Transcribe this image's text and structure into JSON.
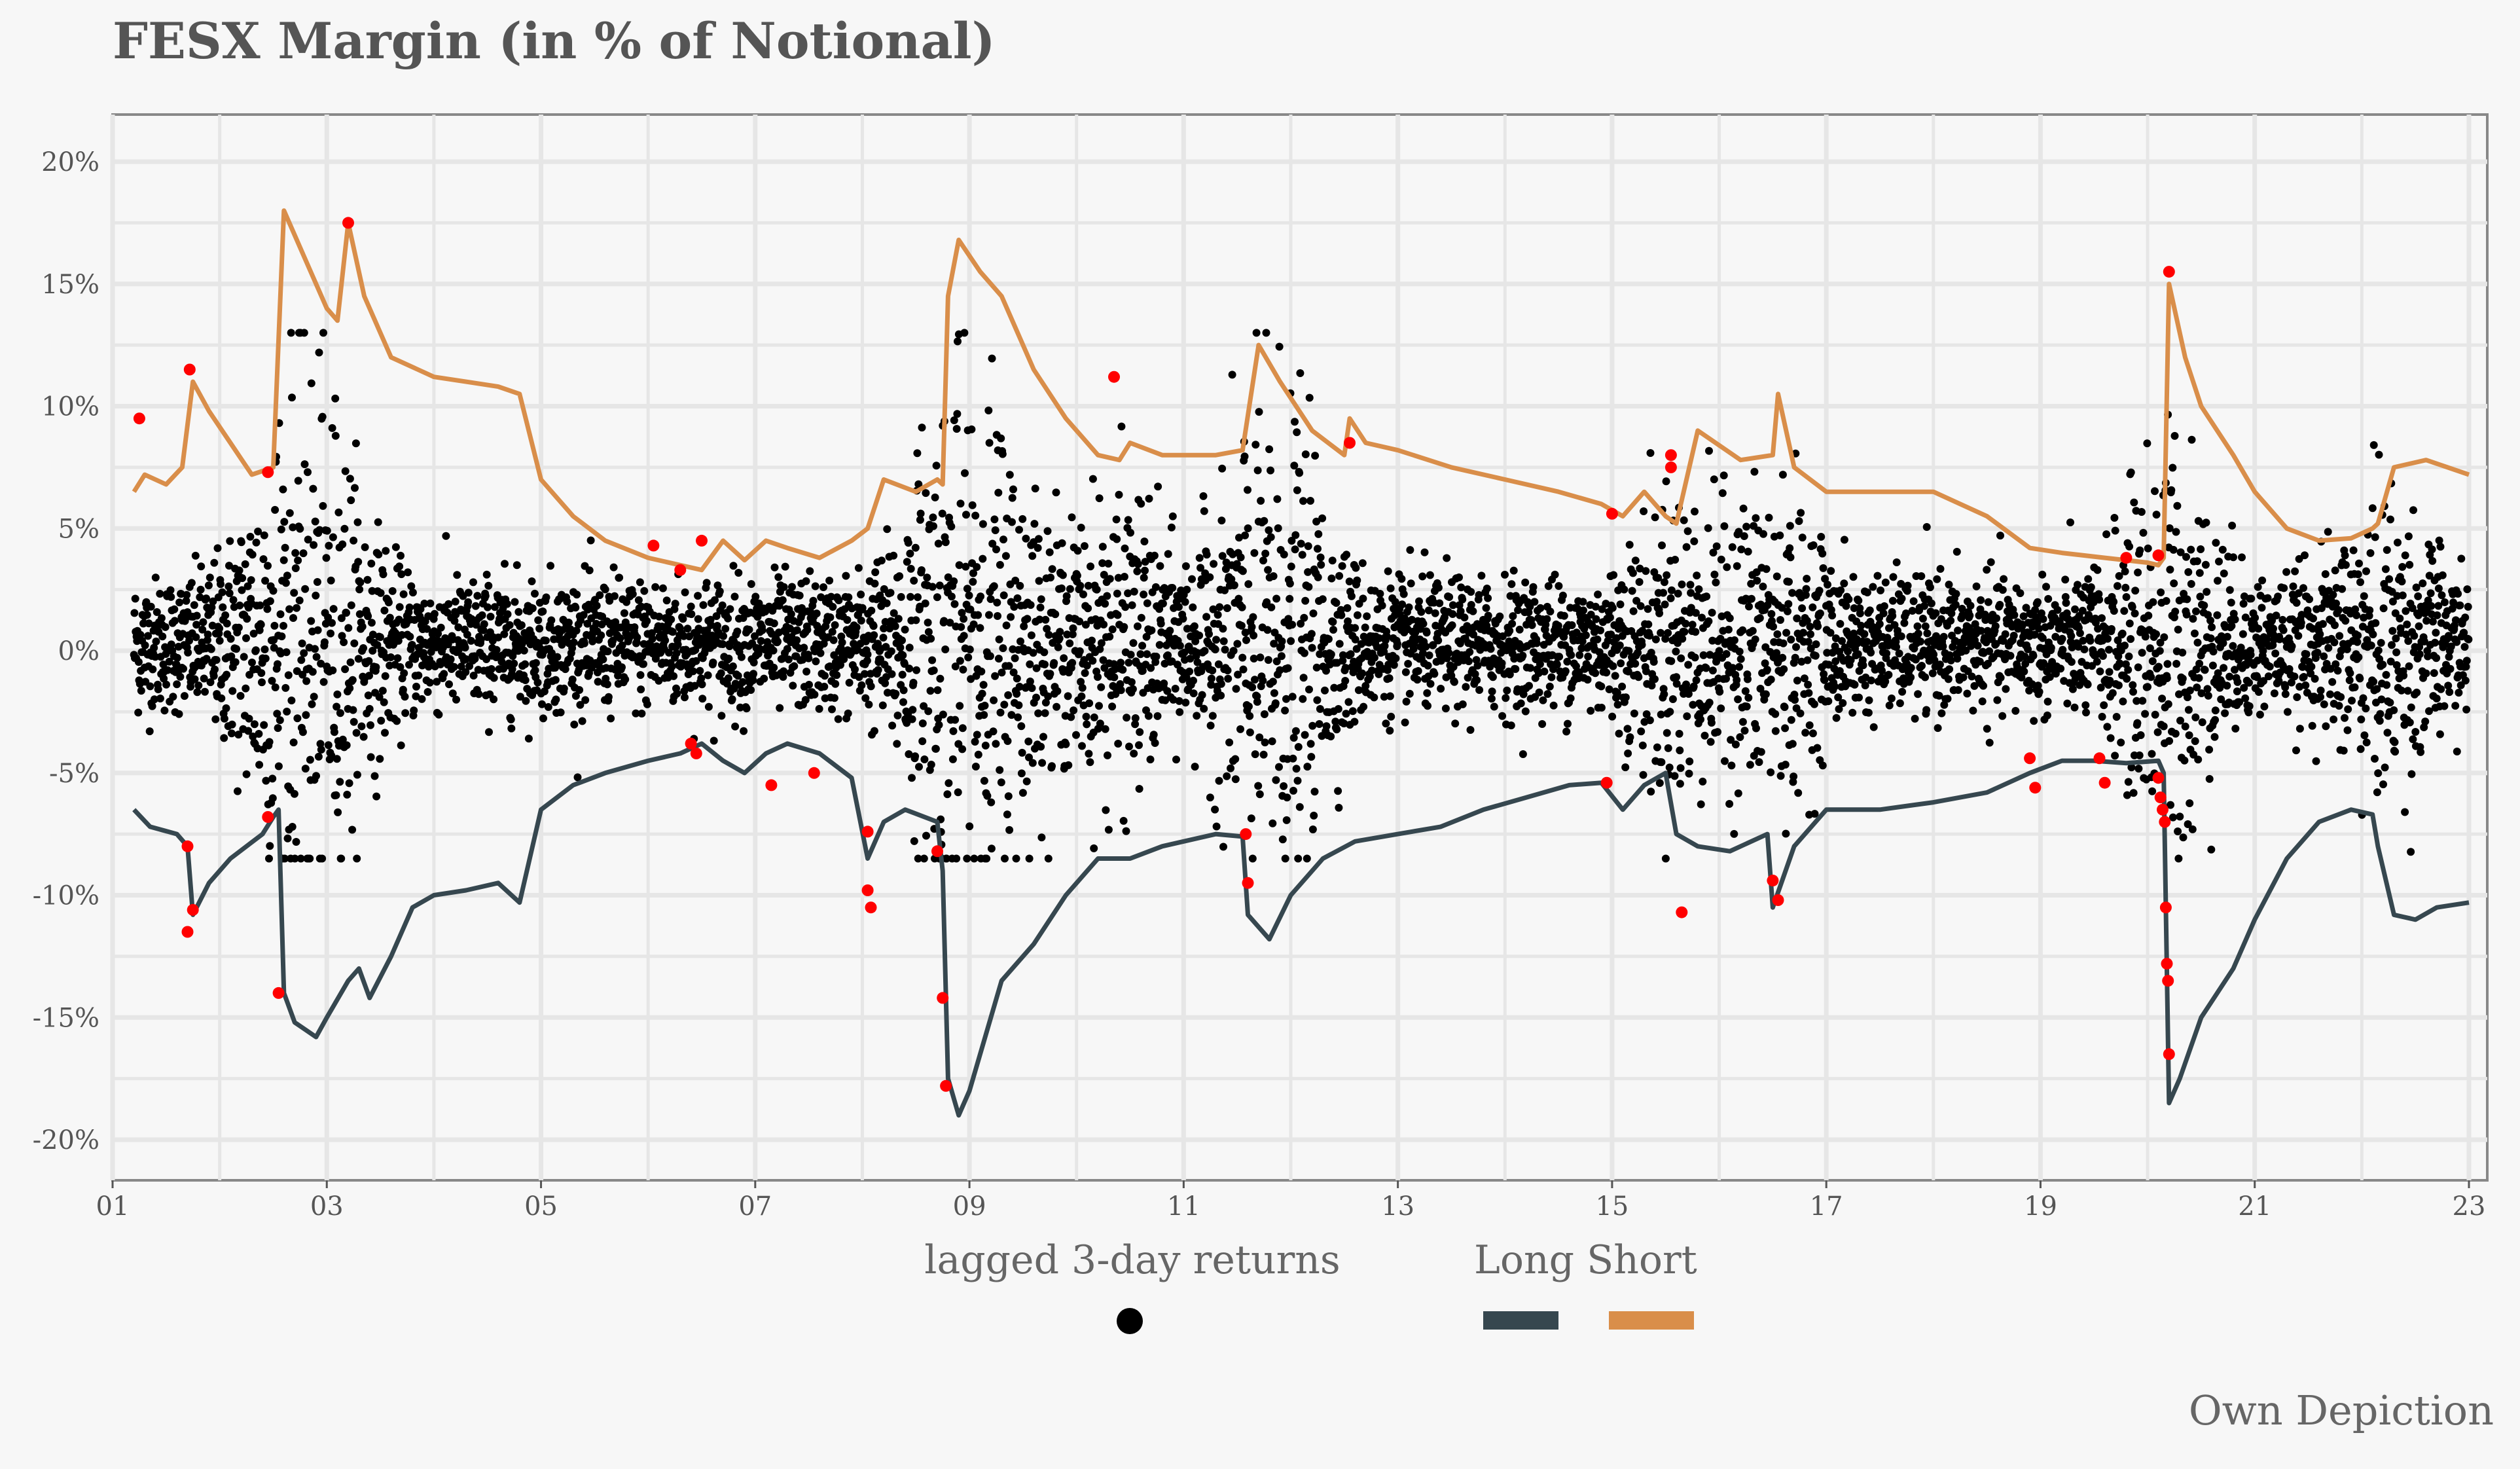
{
  "chart_data": {
    "type": "line",
    "title": "FESX Margin (in % of Notional)",
    "xlabel": "",
    "ylabel": "",
    "caption": "Own Depiction",
    "x_ticks": [
      "01",
      "03",
      "05",
      "07",
      "09",
      "11",
      "13",
      "15",
      "17",
      "19",
      "21",
      "23"
    ],
    "y_ticks": [
      "20%",
      "15%",
      "10%",
      "5%",
      "0%",
      "-5%",
      "-10%",
      "-15%",
      "-20%"
    ],
    "xlim": [
      2001,
      2023.2
    ],
    "ylim": [
      -22,
      22
    ],
    "grid": true,
    "legend_position": "bottom",
    "legend": {
      "points_title": "lagged 3-day returns",
      "lines_title": "Long  Short"
    },
    "colors": {
      "Long": "#36474f",
      "Short": "#d98e4a",
      "returns": "#000000",
      "breaches": "#ff0000"
    },
    "series": [
      {
        "name": "Long",
        "x": [
          2001.2,
          2001.35,
          2001.6,
          2001.7,
          2001.75,
          2001.9,
          2002.1,
          2002.4,
          2002.5,
          2002.55,
          2002.6,
          2002.7,
          2002.8,
          2002.9,
          2003.0,
          2003.2,
          2003.3,
          2003.4,
          2003.6,
          2003.8,
          2004.0,
          2004.3,
          2004.6,
          2004.8,
          2005.0,
          2005.3,
          2005.6,
          2006.0,
          2006.3,
          2006.5,
          2006.7,
          2006.9,
          2007.1,
          2007.3,
          2007.6,
          2007.9,
          2008.05,
          2008.2,
          2008.4,
          2008.7,
          2008.75,
          2008.8,
          2008.9,
          2009.0,
          2009.3,
          2009.6,
          2009.9,
          2010.2,
          2010.5,
          2010.8,
          2011.0,
          2011.3,
          2011.55,
          2011.6,
          2011.8,
          2012.0,
          2012.3,
          2012.6,
          2013.0,
          2013.4,
          2013.8,
          2014.2,
          2014.6,
          2014.9,
          2015.1,
          2015.3,
          2015.5,
          2015.6,
          2015.8,
          2016.1,
          2016.45,
          2016.5,
          2016.7,
          2017.0,
          2017.5,
          2018.0,
          2018.5,
          2018.9,
          2019.2,
          2019.5,
          2019.8,
          2020.1,
          2020.15,
          2020.2,
          2020.3,
          2020.5,
          2020.8,
          2021.0,
          2021.3,
          2021.6,
          2021.9,
          2022.1,
          2022.15,
          2022.3,
          2022.5,
          2022.7,
          2023.0
        ],
        "values": [
          -6.5,
          -7.2,
          -7.5,
          -8.0,
          -10.8,
          -9.5,
          -8.5,
          -7.5,
          -6.8,
          -6.5,
          -14.0,
          -15.2,
          -15.5,
          -15.8,
          -15.0,
          -13.5,
          -13.0,
          -14.2,
          -12.5,
          -10.5,
          -10.0,
          -9.8,
          -9.5,
          -10.3,
          -6.5,
          -5.5,
          -5.0,
          -4.5,
          -4.2,
          -3.8,
          -4.5,
          -5.0,
          -4.2,
          -3.8,
          -4.2,
          -5.2,
          -8.5,
          -7.0,
          -6.5,
          -7.0,
          -9.0,
          -17.5,
          -19.0,
          -18.0,
          -13.5,
          -12.0,
          -10.0,
          -8.5,
          -8.5,
          -8.0,
          -7.8,
          -7.5,
          -7.6,
          -10.8,
          -11.8,
          -10.0,
          -8.5,
          -7.8,
          -7.5,
          -7.2,
          -6.5,
          -6.0,
          -5.5,
          -5.4,
          -6.5,
          -5.5,
          -5.0,
          -7.5,
          -8.0,
          -8.2,
          -7.5,
          -10.5,
          -8.0,
          -6.5,
          -6.5,
          -6.2,
          -5.8,
          -5.0,
          -4.5,
          -4.5,
          -4.6,
          -4.5,
          -5.0,
          -18.5,
          -17.5,
          -15.0,
          -13.0,
          -11.0,
          -8.5,
          -7.0,
          -6.5,
          -6.7,
          -8.0,
          -10.8,
          -11.0,
          -10.5,
          -10.3
        ]
      },
      {
        "name": "Short",
        "x": [
          2001.2,
          2001.3,
          2001.5,
          2001.65,
          2001.75,
          2001.9,
          2002.1,
          2002.3,
          2002.5,
          2002.6,
          2002.65,
          2002.8,
          2003.0,
          2003.1,
          2003.2,
          2003.35,
          2003.6,
          2004.0,
          2004.3,
          2004.6,
          2004.8,
          2005.0,
          2005.3,
          2005.6,
          2006.0,
          2006.3,
          2006.5,
          2006.7,
          2006.9,
          2007.1,
          2007.3,
          2007.6,
          2007.9,
          2008.05,
          2008.2,
          2008.5,
          2008.7,
          2008.75,
          2008.8,
          2008.9,
          2009.1,
          2009.3,
          2009.6,
          2009.9,
          2010.2,
          2010.4,
          2010.5,
          2010.8,
          2011.0,
          2011.3,
          2011.55,
          2011.7,
          2011.9,
          2012.2,
          2012.5,
          2012.55,
          2012.7,
          2013.0,
          2013.5,
          2014.0,
          2014.5,
          2014.9,
          2015.1,
          2015.3,
          2015.5,
          2015.6,
          2015.8,
          2016.2,
          2016.5,
          2016.55,
          2016.7,
          2017.0,
          2017.5,
          2018.0,
          2018.5,
          2018.9,
          2019.2,
          2019.6,
          2020.0,
          2020.1,
          2020.15,
          2020.2,
          2020.35,
          2020.5,
          2020.8,
          2021.0,
          2021.3,
          2021.6,
          2021.9,
          2022.1,
          2022.15,
          2022.3,
          2022.6,
          2023.0
        ],
        "values": [
          6.5,
          7.2,
          6.8,
          7.5,
          11.0,
          9.8,
          8.5,
          7.2,
          7.5,
          18.0,
          17.5,
          16.0,
          14.0,
          13.5,
          17.5,
          14.5,
          12.0,
          11.2,
          11.0,
          10.8,
          10.5,
          7.0,
          5.5,
          4.5,
          3.8,
          3.5,
          3.3,
          4.5,
          3.7,
          4.5,
          4.2,
          3.8,
          4.5,
          5.0,
          7.0,
          6.5,
          7.0,
          6.8,
          14.5,
          16.8,
          15.5,
          14.5,
          11.5,
          9.5,
          8.0,
          7.8,
          8.5,
          8.0,
          8.0,
          8.0,
          8.2,
          12.5,
          11.0,
          9.0,
          8.0,
          9.5,
          8.5,
          8.2,
          7.5,
          7.0,
          6.5,
          6.0,
          5.5,
          6.5,
          5.5,
          5.2,
          9.0,
          7.8,
          8.0,
          10.5,
          7.5,
          6.5,
          6.5,
          6.5,
          5.5,
          4.2,
          4.0,
          3.8,
          3.6,
          3.5,
          3.8,
          15.0,
          12.0,
          10.0,
          8.0,
          6.5,
          5.0,
          4.5,
          4.6,
          5.0,
          5.2,
          7.5,
          7.8,
          7.2
        ]
      }
    ],
    "breach_points": {
      "x": [
        2001.25,
        2001.72,
        2002.45,
        2003.2,
        2006.05,
        2006.5,
        2010.35,
        2012.55,
        2015.55,
        2015.55,
        2015.0,
        2020.2,
        2019.8,
        2020.1,
        2006.3,
        2001.7,
        2001.7,
        2001.75,
        2002.45,
        2002.55,
        2006.4,
        2006.45,
        2007.15,
        2007.55,
        2008.05,
        2008.05,
        2008.08,
        2008.7,
        2008.75,
        2008.78,
        2011.58,
        2011.6,
        2014.95,
        2015.65,
        2016.5,
        2016.55,
        2018.9,
        2018.95,
        2019.55,
        2019.6,
        2020.1,
        2020.12,
        2020.14,
        2020.16,
        2020.17,
        2020.18,
        2020.19,
        2020.2
      ],
      "y": [
        9.5,
        11.5,
        7.3,
        17.5,
        4.3,
        4.5,
        11.2,
        8.5,
        8.0,
        7.5,
        5.6,
        15.5,
        3.8,
        3.9,
        3.3,
        -8.0,
        -11.5,
        -10.6,
        -6.8,
        -14.0,
        -3.8,
        -4.2,
        -5.5,
        -5.0,
        -7.4,
        -9.8,
        -10.5,
        -8.2,
        -14.2,
        -17.8,
        -7.5,
        -9.5,
        -5.4,
        -10.7,
        -9.4,
        -10.2,
        -4.4,
        -5.6,
        -4.4,
        -5.4,
        -5.2,
        -6.0,
        -6.5,
        -7.0,
        -10.5,
        -12.8,
        -13.5,
        -16.5
      ]
    },
    "returns_scatter": {
      "description": "dense cloud of several thousand lagged 3-day returns between roughly -8% and +13%, concentrated around 0%",
      "approx_count": 5500
    }
  },
  "caption": "Own Depiction"
}
